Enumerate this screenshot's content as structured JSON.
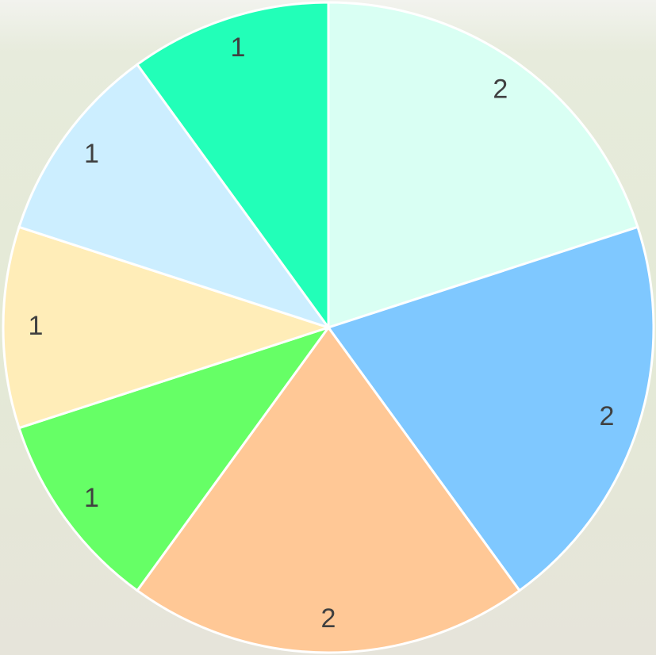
{
  "chart_data": {
    "type": "pie",
    "values": [
      2,
      2,
      2,
      1,
      1,
      1,
      1
    ],
    "colors": [
      "#d9fff3",
      "#7fc8ff",
      "#ffc896",
      "#66ff66",
      "#ffedb8",
      "#cceeff",
      "#22ffb8"
    ]
  }
}
